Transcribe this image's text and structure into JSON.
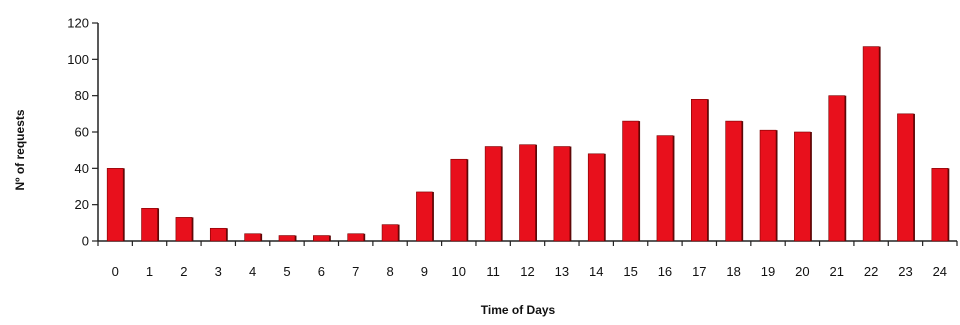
{
  "chart_data": {
    "type": "bar",
    "title": "",
    "xlabel": "Time of Days",
    "ylabel": "Nº of requests",
    "categories": [
      "0",
      "1",
      "2",
      "3",
      "4",
      "5",
      "6",
      "7",
      "8",
      "9",
      "10",
      "11",
      "12",
      "13",
      "14",
      "15",
      "16",
      "17",
      "18",
      "19",
      "20",
      "21",
      "22",
      "23",
      "24"
    ],
    "values": [
      40,
      18,
      13,
      7,
      4,
      3,
      3,
      4,
      9,
      27,
      45,
      52,
      53,
      52,
      48,
      66,
      58,
      78,
      66,
      61,
      60,
      80,
      107,
      70,
      40
    ],
    "ylim": [
      0,
      120
    ],
    "yticks": [
      0,
      20,
      40,
      60,
      80,
      100,
      120
    ],
    "grid": false,
    "legend": "none",
    "colors": {
      "bar_fill": "#e8101c",
      "bar_shadow": "#5a0a0a",
      "axis": "#222222"
    }
  }
}
